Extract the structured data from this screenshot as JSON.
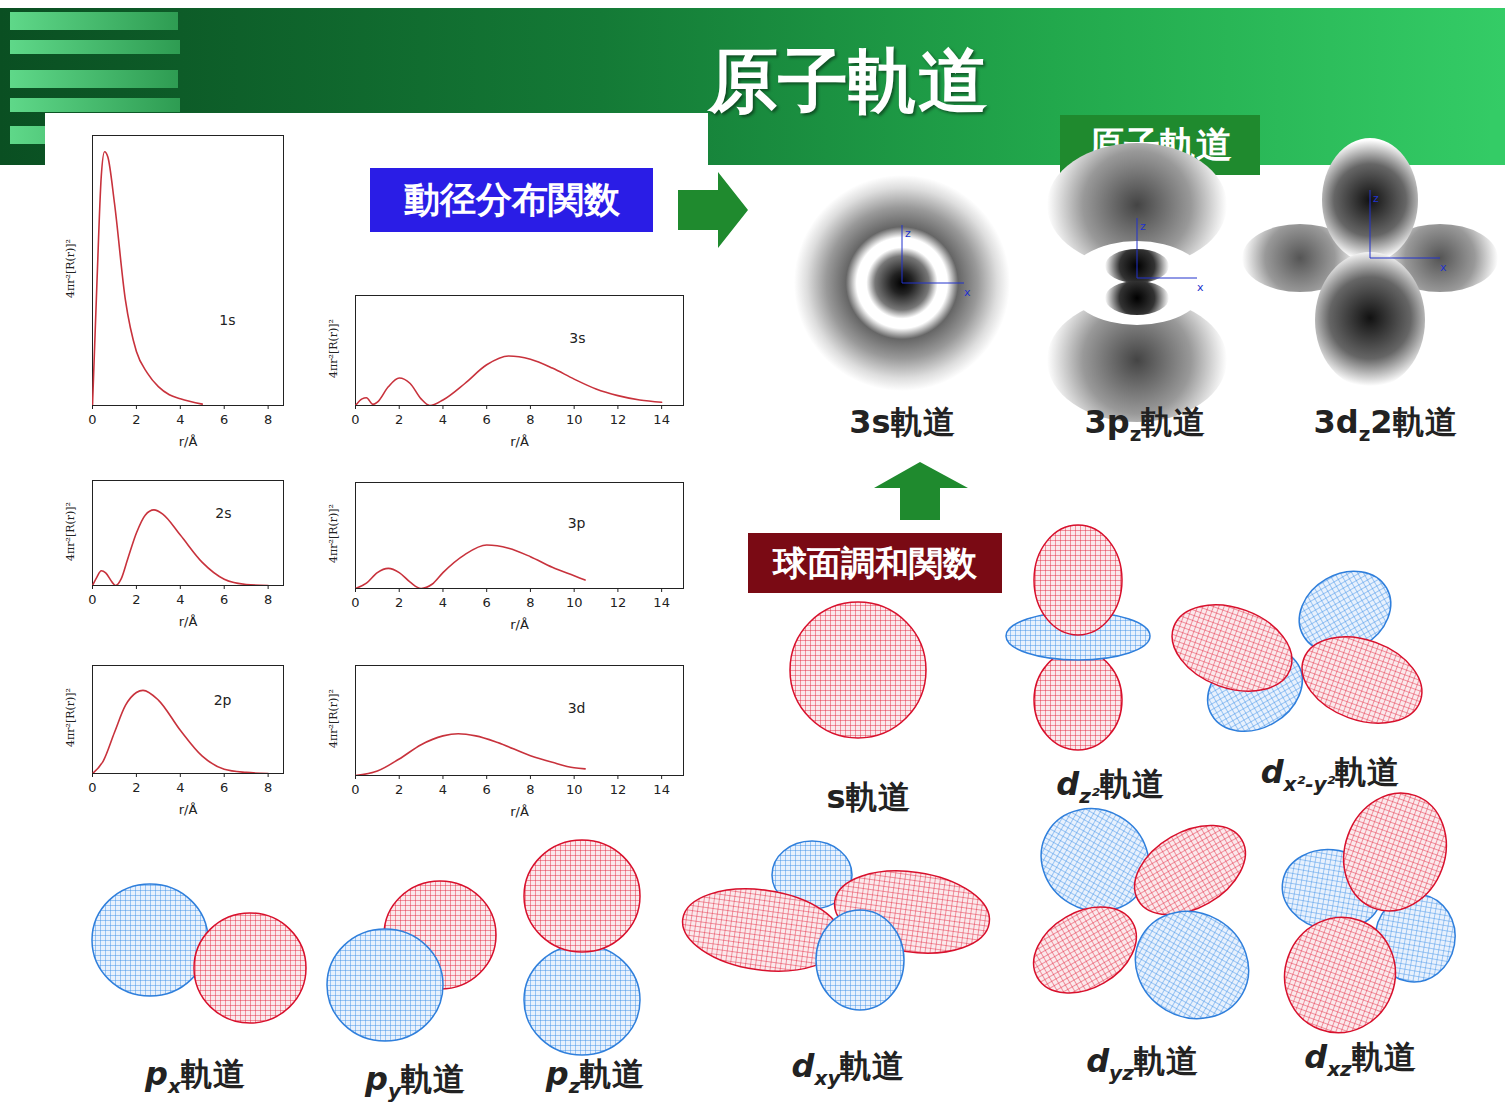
{
  "header": {
    "title": "原子軌道"
  },
  "labels": {
    "radial": "動径分布関数",
    "orbital": "原子軌道",
    "spherical": "球面調和関数",
    "axis_labels": [
      "z",
      "x"
    ]
  },
  "density_images": [
    {
      "base": "3s軌道"
    },
    {
      "base": "3p",
      "sub": "z",
      "tail": "軌道"
    },
    {
      "base": "3d",
      "sub": "z",
      "tail": "2軌道"
    }
  ],
  "orbitals": [
    {
      "base": "s軌道"
    },
    {
      "base": "d",
      "sub": "z²",
      "tail": "軌道"
    },
    {
      "base": "d",
      "sub": "x²-y²",
      "tail": "軌道"
    },
    {
      "base": "p",
      "sub": "x",
      "tail": "軌道"
    },
    {
      "base": "p",
      "sub": "y",
      "tail": "軌道"
    },
    {
      "base": "p",
      "sub": "z",
      "tail": "軌道"
    },
    {
      "base": "d",
      "sub": "xy",
      "tail": "軌道"
    },
    {
      "base": "d",
      "sub": "yz",
      "tail": "軌道"
    },
    {
      "base": "d",
      "sub": "xz",
      "tail": "軌道"
    }
  ],
  "chart_data": [
    {
      "type": "line",
      "title": "1s",
      "x_label": "r/Å",
      "y_label": "4πr²[R(r)]²",
      "color": "#c8323c",
      "x": [
        0,
        0.2,
        0.4,
        0.55,
        0.7,
        1.0,
        1.5,
        2.0,
        2.5,
        3.0,
        3.5,
        4.0,
        5.0
      ],
      "values": [
        0,
        0.45,
        0.85,
        0.94,
        0.92,
        0.75,
        0.39,
        0.2,
        0.12,
        0.07,
        0.04,
        0.025,
        0.005
      ],
      "xlim": [
        0,
        8.7
      ],
      "xticks": [
        0,
        2,
        4,
        6,
        8
      ],
      "ylim": [
        0,
        1
      ],
      "tick_labels": "x"
    },
    {
      "type": "line",
      "title": "2s",
      "x_label": "r/Å",
      "y_label": "4πr²[R(r)]²",
      "color": "#c8323c",
      "x": [
        0,
        0.2,
        0.4,
        0.6,
        0.9,
        1.05,
        1.3,
        1.6,
        2.0,
        2.4,
        2.8,
        3.2,
        4.0,
        5.0,
        6.0,
        7.0,
        8.0
      ],
      "values": [
        0,
        0.08,
        0.14,
        0.12,
        0.03,
        0,
        0.06,
        0.25,
        0.5,
        0.67,
        0.72,
        0.68,
        0.48,
        0.22,
        0.06,
        0.01,
        0
      ],
      "xlim": [
        0,
        8.7
      ],
      "xticks": [
        0,
        2,
        4,
        6,
        8
      ],
      "ylim": [
        0,
        1
      ],
      "tick_labels": "x"
    },
    {
      "type": "line",
      "title": "2p",
      "x_label": "r/Å",
      "y_label": "4πr²[R(r)]²",
      "color": "#c8323c",
      "x": [
        0,
        0.5,
        1.0,
        1.5,
        2.0,
        2.3,
        3.0,
        4.0,
        5.0,
        6.0,
        7.0,
        8.0
      ],
      "values": [
        0,
        0.12,
        0.38,
        0.63,
        0.75,
        0.77,
        0.68,
        0.4,
        0.16,
        0.04,
        0.01,
        0
      ],
      "xlim": [
        0,
        8.7
      ],
      "xticks": [
        0,
        2,
        4,
        6,
        8
      ],
      "ylim": [
        0,
        1
      ],
      "tick_labels": "x"
    },
    {
      "type": "line",
      "title": "3s",
      "x_label": "r/Å",
      "y_label": "4πr²[R(r)]²",
      "color": "#c8323c",
      "x": [
        0,
        0.3,
        0.5,
        0.8,
        1.0,
        1.5,
        2.0,
        2.5,
        3.0,
        3.4,
        4.0,
        5.0,
        6.0,
        7.0,
        8.0,
        9.0,
        10.0,
        11.0,
        12.0,
        13.0,
        14.0
      ],
      "values": [
        0,
        0.06,
        0.07,
        0.01,
        0.03,
        0.17,
        0.25,
        0.2,
        0.06,
        0,
        0.05,
        0.2,
        0.37,
        0.45,
        0.42,
        0.34,
        0.24,
        0.15,
        0.09,
        0.05,
        0.03
      ],
      "xlim": [
        0,
        15
      ],
      "xticks": [
        0,
        2,
        4,
        6,
        8,
        10,
        12,
        14
      ],
      "ylim": [
        0,
        1
      ],
      "tick_labels": "x"
    },
    {
      "type": "line",
      "title": "3p",
      "x_label": "r/Å",
      "y_label": "4πr²[R(r)]²",
      "color": "#c8323c",
      "x": [
        0,
        0.5,
        1.0,
        1.5,
        2.0,
        2.5,
        3.0,
        3.5,
        4.0,
        5.0,
        6.0,
        7.0,
        8.0,
        9.0,
        10.0,
        10.5
      ],
      "values": [
        0,
        0.05,
        0.15,
        0.19,
        0.15,
        0.06,
        0,
        0.04,
        0.15,
        0.32,
        0.41,
        0.38,
        0.3,
        0.2,
        0.12,
        0.08
      ],
      "xlim": [
        0,
        15
      ],
      "xticks": [
        0,
        2,
        4,
        6,
        8,
        10,
        12,
        14
      ],
      "ylim": [
        0,
        1
      ],
      "tick_labels": "x"
    },
    {
      "type": "line",
      "title": "3d",
      "x_label": "r/Å",
      "y_label": "4πr²[R(r)]²",
      "color": "#c8323c",
      "x": [
        0,
        1.0,
        2.0,
        3.0,
        4.0,
        4.7,
        5.5,
        6.5,
        8.0,
        9.0,
        10.0,
        10.5
      ],
      "values": [
        0,
        0.04,
        0.15,
        0.28,
        0.36,
        0.38,
        0.36,
        0.3,
        0.18,
        0.12,
        0.07,
        0.06
      ],
      "xlim": [
        0,
        15
      ],
      "xticks": [
        0,
        2,
        4,
        6,
        8,
        10,
        12,
        14
      ],
      "ylim": [
        0,
        1
      ],
      "tick_labels": "x"
    }
  ]
}
